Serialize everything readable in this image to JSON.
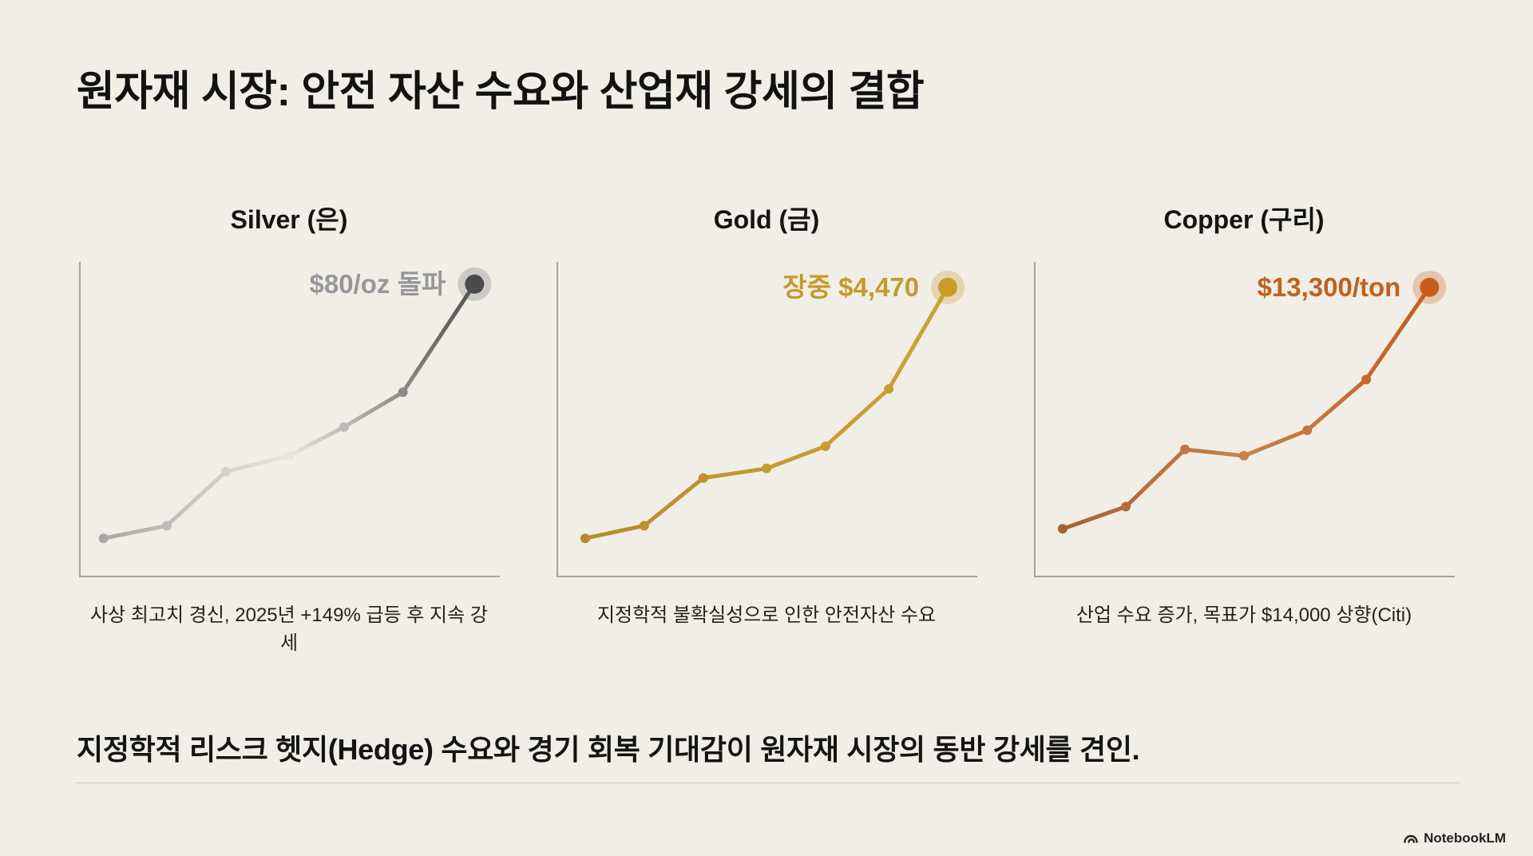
{
  "page": {
    "background": "#f0eee7",
    "title": "원자재 시장: 안전 자산 수요와 산업재 강세의 결합",
    "takeaway": "지정학적 리스크 헷지(Hedge) 수요와 경기 회복 기대감이 원자재 시장의 동반 강세를 견인.",
    "brand": "NotebookLM"
  },
  "chart_data": [
    {
      "type": "line",
      "title": "Silver (은)",
      "annotation": "$80/oz 돌파",
      "caption": "사상 최고치 경신, 2025년 +149% 급등 후 지속 강세",
      "x": [
        0.06,
        0.21,
        0.35,
        0.5,
        0.63,
        0.77,
        0.94
      ],
      "values": [
        12,
        16,
        33,
        38,
        47,
        58,
        92
      ],
      "ylim": [
        0,
        100
      ],
      "grid": false,
      "legend": "none",
      "axis_color": "#a6a49c",
      "gradient": [
        "#9f9f9e",
        "#e7e7e3",
        "#3c3c3c"
      ],
      "annotation_color": "#97979a",
      "endpoint_color": "#4b4b4d",
      "halo_color": "rgba(95,95,100,0.25)"
    },
    {
      "type": "line",
      "title": "Gold (금)",
      "annotation": "장중 $4,470",
      "caption": "지정학적 불확실성으로 인한 안전자산 수요",
      "x": [
        0.07,
        0.21,
        0.35,
        0.5,
        0.64,
        0.79,
        0.93
      ],
      "values": [
        12,
        16,
        31,
        34,
        41,
        59,
        91
      ],
      "ylim": [
        0,
        100
      ],
      "grid": false,
      "legend": "none",
      "axis_color": "#a6a49c",
      "gradient": [
        "#b1882e",
        "#c49b2c",
        "#cfa42f"
      ],
      "annotation_color": "#c49a2b",
      "endpoint_color": "#c99c26",
      "halo_color": "rgba(201,156,38,0.28)"
    },
    {
      "type": "line",
      "title": "Copper (구리)",
      "annotation": "$13,300/ton",
      "caption": "산업 수요 증가, 목표가 $14,000 상향(Citi)",
      "x": [
        0.07,
        0.22,
        0.36,
        0.5,
        0.65,
        0.79,
        0.94
      ],
      "values": [
        15,
        22,
        40,
        38,
        46,
        62,
        91
      ],
      "ylim": [
        0,
        100
      ],
      "grid": false,
      "legend": "none",
      "axis_color": "#a6a49c",
      "gradient": [
        "#a35b28",
        "#c8824e",
        "#c65712"
      ],
      "annotation_color": "#c2601c",
      "endpoint_color": "#c75d1a",
      "halo_color": "rgba(199,93,26,0.28)"
    }
  ]
}
